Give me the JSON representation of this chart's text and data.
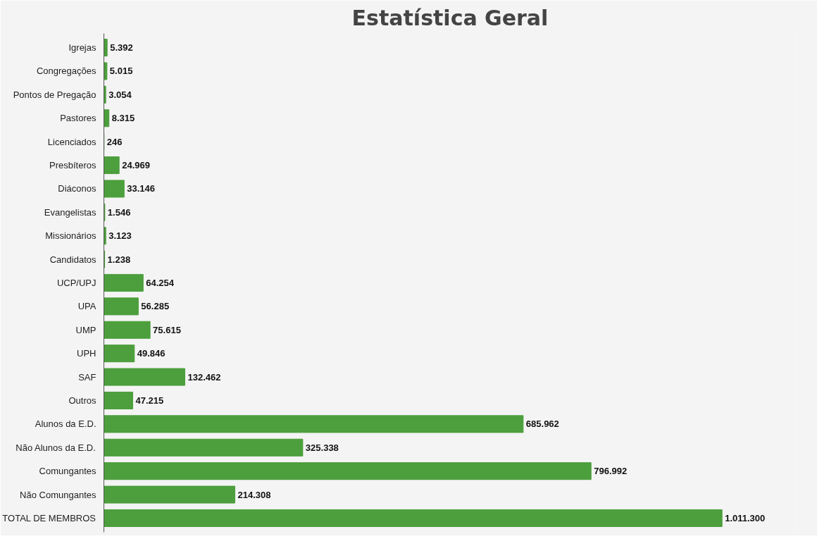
{
  "chart_data": {
    "type": "bar",
    "orientation": "horizontal",
    "title": "Estatística Geral",
    "categories": [
      "Igrejas",
      "Congregações",
      "Pontos de Pregação",
      "Pastores",
      "Licenciados",
      "Presbíteros",
      "Diáconos",
      "Evangelistas",
      "Missionários",
      "Candidatos",
      "UCP/UPJ",
      "UPA",
      "UMP",
      "UPH",
      "SAF",
      "Outros",
      "Alunos da E.D.",
      "Não Alunos da E.D.",
      "Comungantes",
      "Não Comungantes",
      "TOTAL DE MEMBROS"
    ],
    "values": [
      5392,
      5015,
      3054,
      8315,
      246,
      24969,
      33146,
      1546,
      3123,
      1238,
      64254,
      56285,
      75615,
      49846,
      132462,
      47215,
      685962,
      325338,
      796992,
      214308,
      1011300
    ],
    "value_labels": [
      "5.392",
      "5.015",
      "3.054",
      "8.315",
      "246",
      "24.969",
      "33.146",
      "1.546",
      "3.123",
      "1.238",
      "64.254",
      "56.285",
      "75.615",
      "49.846",
      "132.462",
      "47.215",
      "685.962",
      "325.338",
      "796.992",
      "214.308",
      "1.011.300"
    ],
    "color": "#4c9f3c",
    "grid": false
  }
}
